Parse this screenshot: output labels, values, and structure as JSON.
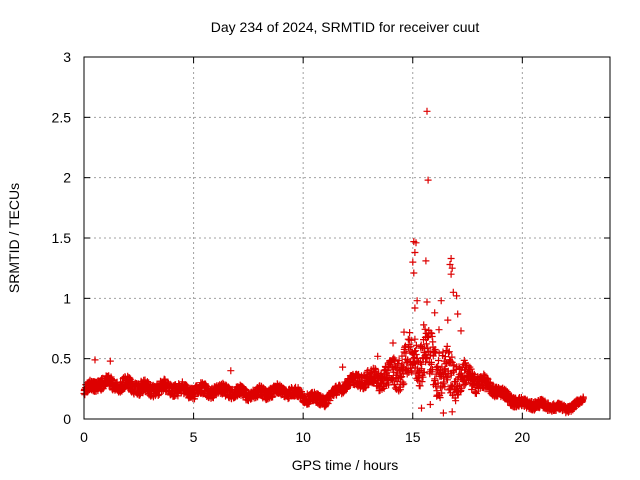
{
  "chart_data": {
    "type": "scatter",
    "title": "Day 234 of 2024, SRMTID for receiver cuut",
    "xlabel": "GPS time / hours",
    "ylabel": "SRMTID / TECUs",
    "xlim": [
      0,
      24
    ],
    "ylim": [
      0,
      3
    ],
    "xticks": [
      0,
      5,
      10,
      15,
      20
    ],
    "yticks": [
      0,
      0.5,
      1,
      1.5,
      2,
      2.5,
      3
    ],
    "xtick_labels": [
      "0",
      "5",
      "10",
      "15",
      "20"
    ],
    "ytick_labels": [
      "0",
      "0.5",
      "1",
      "1.5",
      "2",
      "2.5",
      "3"
    ],
    "grid": true,
    "marker": "+",
    "color": "#dd0000",
    "baseline_profile": [
      [
        0.0,
        0.22
      ],
      [
        1.0,
        0.3
      ],
      [
        2.0,
        0.3
      ],
      [
        3.0,
        0.22
      ],
      [
        4.0,
        0.26
      ],
      [
        5.0,
        0.25
      ],
      [
        6.0,
        0.22
      ],
      [
        7.0,
        0.22
      ],
      [
        8.0,
        0.23
      ],
      [
        9.0,
        0.22
      ],
      [
        10.0,
        0.19
      ],
      [
        11.0,
        0.17
      ],
      [
        12.0,
        0.28
      ],
      [
        13.0,
        0.33
      ],
      [
        14.0,
        0.4
      ],
      [
        15.0,
        0.45
      ],
      [
        16.0,
        0.48
      ],
      [
        17.0,
        0.4
      ],
      [
        18.0,
        0.28
      ],
      [
        19.0,
        0.22
      ],
      [
        20.0,
        0.14
      ],
      [
        21.0,
        0.1
      ],
      [
        22.0,
        0.08
      ],
      [
        22.8,
        0.17
      ]
    ],
    "spread_profile": [
      [
        0.0,
        0.06
      ],
      [
        2.0,
        0.07
      ],
      [
        12.0,
        0.05
      ],
      [
        13.5,
        0.1
      ],
      [
        14.5,
        0.18
      ],
      [
        15.5,
        0.25
      ],
      [
        16.5,
        0.25
      ],
      [
        17.5,
        0.12
      ],
      [
        18.5,
        0.06
      ],
      [
        22.8,
        0.03
      ]
    ],
    "outliers": [
      {
        "x": 15.65,
        "y": 2.55
      },
      {
        "x": 15.7,
        "y": 1.98
      },
      {
        "x": 15.05,
        "y": 1.47
      },
      {
        "x": 15.15,
        "y": 1.46
      },
      {
        "x": 15.1,
        "y": 1.38
      },
      {
        "x": 15.0,
        "y": 1.3
      },
      {
        "x": 15.05,
        "y": 1.21
      },
      {
        "x": 15.6,
        "y": 1.31
      },
      {
        "x": 16.75,
        "y": 1.33
      },
      {
        "x": 16.7,
        "y": 1.28
      },
      {
        "x": 16.8,
        "y": 1.25
      },
      {
        "x": 16.75,
        "y": 1.2
      },
      {
        "x": 16.85,
        "y": 1.05
      },
      {
        "x": 17.0,
        "y": 1.02
      },
      {
        "x": 17.05,
        "y": 0.87
      },
      {
        "x": 16.3,
        "y": 0.98
      },
      {
        "x": 15.65,
        "y": 0.97
      },
      {
        "x": 15.2,
        "y": 0.98
      },
      {
        "x": 15.1,
        "y": 0.92
      },
      {
        "x": 16.0,
        "y": 0.88
      },
      {
        "x": 16.6,
        "y": 0.82
      },
      {
        "x": 15.5,
        "y": 0.78
      },
      {
        "x": 16.2,
        "y": 0.74
      },
      {
        "x": 17.2,
        "y": 0.73
      },
      {
        "x": 14.6,
        "y": 0.72
      },
      {
        "x": 13.4,
        "y": 0.52
      },
      {
        "x": 14.1,
        "y": 0.63
      },
      {
        "x": 16.4,
        "y": 0.05
      },
      {
        "x": 16.8,
        "y": 0.06
      },
      {
        "x": 15.4,
        "y": 0.09
      },
      {
        "x": 15.8,
        "y": 0.12
      },
      {
        "x": 0.5,
        "y": 0.49
      },
      {
        "x": 1.2,
        "y": 0.48
      },
      {
        "x": 6.7,
        "y": 0.4
      },
      {
        "x": 11.8,
        "y": 0.43
      }
    ]
  }
}
